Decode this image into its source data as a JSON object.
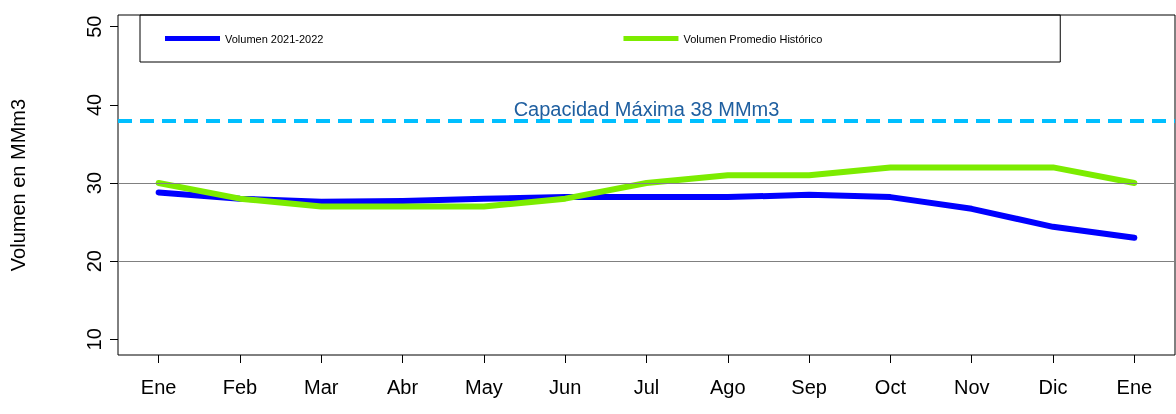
{
  "chart_data": {
    "type": "line",
    "ylabel": "Volumen en MMm3",
    "categories": [
      "Ene",
      "Feb",
      "Mar",
      "Abr",
      "May",
      "Jun",
      "Jul",
      "Ago",
      "Sep",
      "Oct",
      "Nov",
      "Dic",
      "Ene"
    ],
    "series": [
      {
        "name": "Volumen 2021-2022",
        "color": "#0000ff",
        "values": [
          28.8,
          28.0,
          27.6,
          27.7,
          28.0,
          28.2,
          28.2,
          28.2,
          28.5,
          28.2,
          26.7,
          24.4,
          23.0
        ]
      },
      {
        "name": "Volumen Promedio Histórico",
        "color": "#7cec00",
        "values": [
          30,
          28,
          27,
          27,
          27,
          28,
          30,
          31,
          31,
          32,
          32,
          32,
          30
        ]
      }
    ],
    "ylim": [
      8,
      51.5
    ],
    "yticks": [
      10,
      20,
      30,
      40,
      50
    ],
    "ref_lines": [
      {
        "axis": "y",
        "value": 38,
        "label": "Capacidad Máxima 38 MMm3",
        "color": "#00bfff",
        "line_style": "dashed"
      },
      {
        "axis": "y",
        "value": 30,
        "label": null,
        "color": "#808080",
        "line_style": "solid"
      },
      {
        "axis": "y",
        "value": 20,
        "label": null,
        "color": "#808080",
        "line_style": "solid"
      }
    ],
    "legend": "top",
    "marker": "none",
    "line_style": "solid",
    "grid": false
  }
}
